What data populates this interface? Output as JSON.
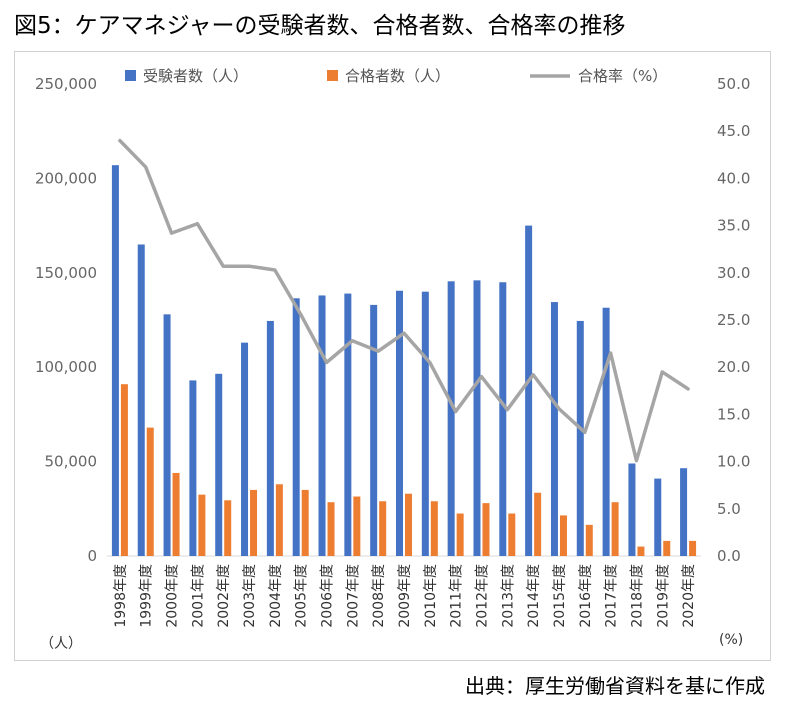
{
  "title": "図5：ケアマネジャーの受験者数、合格者数、合格率の推移",
  "source": "出典：厚生労働省資料を基に作成",
  "chart_data": {
    "type": "bar+line",
    "categories": [
      "1998年度",
      "1999年度",
      "2000年度",
      "2001年度",
      "2002年度",
      "2003年度",
      "2004年度",
      "2005年度",
      "2006年度",
      "2007年度",
      "2008年度",
      "2009年度",
      "2010年度",
      "2011年度",
      "2012年度",
      "2013年度",
      "2014年度",
      "2015年度",
      "2016年度",
      "2017年度",
      "2018年度",
      "2019年度",
      "2020年度"
    ],
    "series": [
      {
        "name": "受験者数（人）",
        "type": "bar",
        "axis": "left",
        "color": "#4472c4",
        "values": [
          207000,
          165000,
          128000,
          93000,
          96500,
          113000,
          124500,
          136500,
          138000,
          139000,
          133000,
          140500,
          140000,
          145500,
          146000,
          145000,
          175000,
          134500,
          124500,
          131500,
          49000,
          41000,
          46500
        ]
      },
      {
        "name": "合格者数（人）",
        "type": "bar",
        "axis": "left",
        "color": "#ed7d31",
        "values": [
          91000,
          68000,
          44000,
          32500,
          29500,
          35000,
          38000,
          35000,
          28500,
          31500,
          29000,
          33000,
          29000,
          22500,
          28000,
          22500,
          33500,
          21500,
          16500,
          28500,
          5000,
          8000,
          8000
        ]
      },
      {
        "name": "合格率（%）",
        "type": "line",
        "axis": "right",
        "color": "#a5a5a5",
        "values": [
          44.0,
          41.2,
          34.2,
          35.2,
          30.7,
          30.7,
          30.3,
          25.6,
          20.5,
          22.8,
          21.7,
          23.6,
          20.5,
          15.3,
          19.0,
          15.5,
          19.2,
          15.6,
          13.1,
          21.5,
          10.1,
          19.5,
          17.7
        ]
      }
    ],
    "y_left": {
      "min": 0,
      "max": 250000,
      "ticks": [
        "0",
        "50,000",
        "100,000",
        "150,000",
        "200,000",
        "250,000"
      ],
      "unit_label": "（人）"
    },
    "y_right": {
      "min": 0,
      "max": 50,
      "ticks": [
        "0.0",
        "5.0",
        "10.0",
        "15.0",
        "20.0",
        "25.0",
        "30.0",
        "35.0",
        "40.0",
        "45.0",
        "50.0"
      ],
      "unit_label": "(%)"
    },
    "grid": false,
    "legend_position": "top"
  }
}
